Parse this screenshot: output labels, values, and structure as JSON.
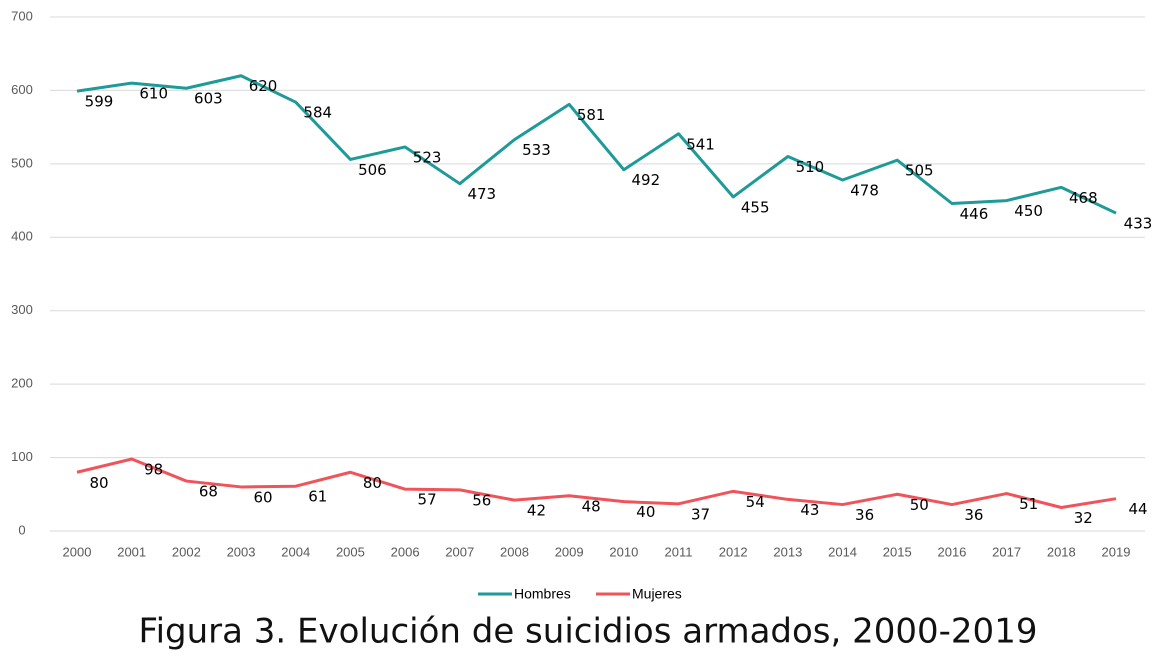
{
  "chart_data": {
    "type": "line",
    "title": "Figura 3. Evolución de suicidios armados, 2000-2019",
    "categories": [
      "2000",
      "2001",
      "2002",
      "2003",
      "2004",
      "2005",
      "2006",
      "2007",
      "2008",
      "2009",
      "2010",
      "2011",
      "2012",
      "2013",
      "2014",
      "2015",
      "2016",
      "2017",
      "2018",
      "2019"
    ],
    "series": [
      {
        "name": "Hombres",
        "color": "#1e9a98",
        "values": [
          599,
          610,
          603,
          620,
          584,
          506,
          523,
          473,
          533,
          581,
          492,
          541,
          455,
          510,
          478,
          505,
          446,
          450,
          468,
          433
        ]
      },
      {
        "name": "Mujeres",
        "color": "#f0545a",
        "values": [
          80,
          98,
          68,
          60,
          61,
          80,
          57,
          56,
          42,
          48,
          40,
          37,
          54,
          43,
          36,
          50,
          36,
          51,
          32,
          44
        ]
      }
    ],
    "ylim": [
      0,
      700
    ],
    "yticks": [
      0,
      100,
      200,
      300,
      400,
      500,
      600,
      700
    ],
    "grid": true,
    "legend": "bottom"
  }
}
